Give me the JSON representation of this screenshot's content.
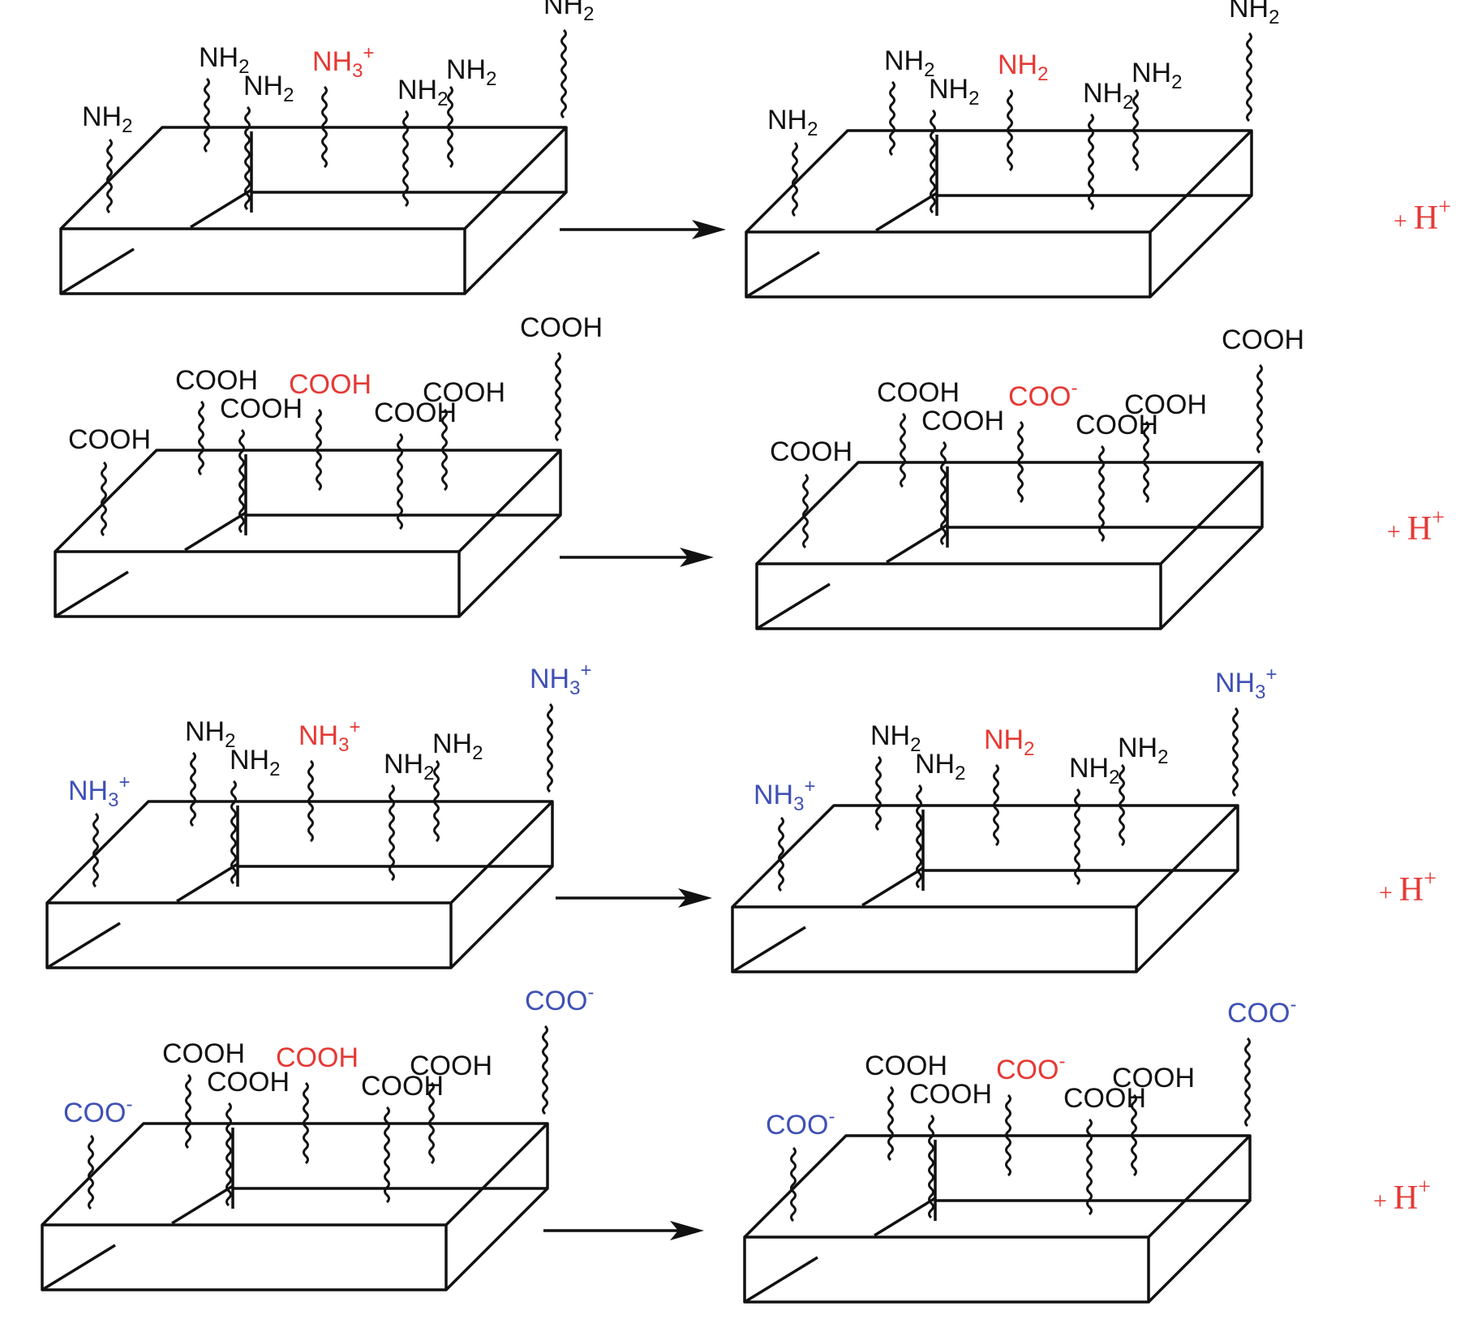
{
  "colors": {
    "default": "#111111",
    "changed": "#e53935",
    "charged": "#3f51b5"
  },
  "proton_label": {
    "plus": "+",
    "ion": "H",
    "charge": "+"
  },
  "rows": [
    {
      "id": "row-1",
      "before": [
        {
          "base": "NH",
          "sub": "2",
          "sup": "",
          "color": "default"
        },
        {
          "base": "NH",
          "sub": "2",
          "sup": "",
          "color": "default"
        },
        {
          "base": "NH",
          "sub": "2",
          "sup": "",
          "color": "default"
        },
        {
          "base": "NH",
          "sub": "3",
          "sup": "+",
          "color": "changed"
        },
        {
          "base": "NH",
          "sub": "2",
          "sup": "",
          "color": "default"
        },
        {
          "base": "NH",
          "sub": "2",
          "sup": "",
          "color": "default"
        },
        {
          "base": "NH",
          "sub": "2",
          "sup": "",
          "color": "default"
        }
      ],
      "after": [
        {
          "base": "NH",
          "sub": "2",
          "sup": "",
          "color": "default"
        },
        {
          "base": "NH",
          "sub": "2",
          "sup": "",
          "color": "default"
        },
        {
          "base": "NH",
          "sub": "2",
          "sup": "",
          "color": "default"
        },
        {
          "base": "NH",
          "sub": "2",
          "sup": "",
          "color": "changed"
        },
        {
          "base": "NH",
          "sub": "2",
          "sup": "",
          "color": "default"
        },
        {
          "base": "NH",
          "sub": "2",
          "sup": "",
          "color": "default"
        },
        {
          "base": "NH",
          "sub": "2",
          "sup": "",
          "color": "default"
        }
      ]
    },
    {
      "id": "row-2",
      "before": [
        {
          "base": "COOH",
          "sub": "",
          "sup": "",
          "color": "default"
        },
        {
          "base": "COOH",
          "sub": "",
          "sup": "",
          "color": "default"
        },
        {
          "base": "COOH",
          "sub": "",
          "sup": "",
          "color": "default"
        },
        {
          "base": "COOH",
          "sub": "",
          "sup": "",
          "color": "changed"
        },
        {
          "base": "COOH",
          "sub": "",
          "sup": "",
          "color": "default"
        },
        {
          "base": "COOH",
          "sub": "",
          "sup": "",
          "color": "default"
        },
        {
          "base": "COOH",
          "sub": "",
          "sup": "",
          "color": "default"
        }
      ],
      "after": [
        {
          "base": "COOH",
          "sub": "",
          "sup": "",
          "color": "default"
        },
        {
          "base": "COOH",
          "sub": "",
          "sup": "",
          "color": "default"
        },
        {
          "base": "COOH",
          "sub": "",
          "sup": "",
          "color": "default"
        },
        {
          "base": "COO",
          "sub": "",
          "sup": "-",
          "color": "changed"
        },
        {
          "base": "COOH",
          "sub": "",
          "sup": "",
          "color": "default"
        },
        {
          "base": "COOH",
          "sub": "",
          "sup": "",
          "color": "default"
        },
        {
          "base": "COOH",
          "sub": "",
          "sup": "",
          "color": "default"
        }
      ]
    },
    {
      "id": "row-3",
      "before": [
        {
          "base": "NH",
          "sub": "3",
          "sup": "+",
          "color": "charged"
        },
        {
          "base": "NH",
          "sub": "2",
          "sup": "",
          "color": "default"
        },
        {
          "base": "NH",
          "sub": "2",
          "sup": "",
          "color": "default"
        },
        {
          "base": "NH",
          "sub": "3",
          "sup": "+",
          "color": "changed"
        },
        {
          "base": "NH",
          "sub": "2",
          "sup": "",
          "color": "default"
        },
        {
          "base": "NH",
          "sub": "2",
          "sup": "",
          "color": "default"
        },
        {
          "base": "NH",
          "sub": "3",
          "sup": "+",
          "color": "charged"
        }
      ],
      "after": [
        {
          "base": "NH",
          "sub": "3",
          "sup": "+",
          "color": "charged"
        },
        {
          "base": "NH",
          "sub": "2",
          "sup": "",
          "color": "default"
        },
        {
          "base": "NH",
          "sub": "2",
          "sup": "",
          "color": "default"
        },
        {
          "base": "NH",
          "sub": "2",
          "sup": "",
          "color": "changed"
        },
        {
          "base": "NH",
          "sub": "2",
          "sup": "",
          "color": "default"
        },
        {
          "base": "NH",
          "sub": "2",
          "sup": "",
          "color": "default"
        },
        {
          "base": "NH",
          "sub": "3",
          "sup": "+",
          "color": "charged"
        }
      ]
    },
    {
      "id": "row-4",
      "before": [
        {
          "base": "COO",
          "sub": "",
          "sup": "-",
          "color": "charged"
        },
        {
          "base": "COOH",
          "sub": "",
          "sup": "",
          "color": "default"
        },
        {
          "base": "COOH",
          "sub": "",
          "sup": "",
          "color": "default"
        },
        {
          "base": "COOH",
          "sub": "",
          "sup": "",
          "color": "changed"
        },
        {
          "base": "COOH",
          "sub": "",
          "sup": "",
          "color": "default"
        },
        {
          "base": "COOH",
          "sub": "",
          "sup": "",
          "color": "default"
        },
        {
          "base": "COO",
          "sub": "",
          "sup": "-",
          "color": "charged"
        }
      ],
      "after": [
        {
          "base": "COO",
          "sub": "",
          "sup": "-",
          "color": "charged"
        },
        {
          "base": "COOH",
          "sub": "",
          "sup": "",
          "color": "default"
        },
        {
          "base": "COOH",
          "sub": "",
          "sup": "",
          "color": "default"
        },
        {
          "base": "COO",
          "sub": "",
          "sup": "-",
          "color": "changed"
        },
        {
          "base": "COOH",
          "sub": "",
          "sup": "",
          "color": "default"
        },
        {
          "base": "COOH",
          "sub": "",
          "sup": "",
          "color": "default"
        },
        {
          "base": "COO",
          "sub": "",
          "sup": "-",
          "color": "charged"
        }
      ]
    }
  ]
}
